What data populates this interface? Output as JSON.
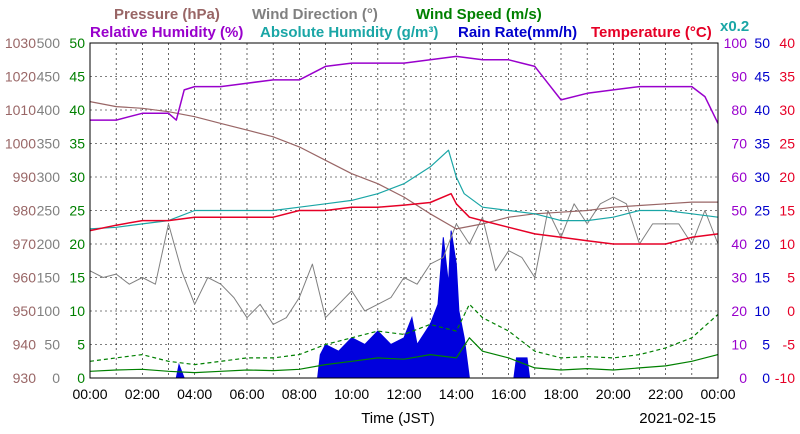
{
  "chart_data": {
    "type": "line",
    "date": "2021-02-15",
    "xlabel": "Time (JST)",
    "x_ticks": [
      "00:00",
      "02:00",
      "04:00",
      "06:00",
      "08:00",
      "10:00",
      "12:00",
      "14:00",
      "16:00",
      "18:00",
      "20:00",
      "22:00",
      "00:00"
    ],
    "legend": {
      "row1": [
        {
          "id": "pressure",
          "text": "Pressure (hPa)",
          "color": "#996666"
        },
        {
          "id": "wind_dir",
          "text": "Wind Direction (°)",
          "color": "#808080"
        },
        {
          "id": "wind_speed",
          "text": "Wind Speed (m/s)",
          "color": "#008000"
        }
      ],
      "row2": [
        {
          "id": "rh",
          "text": "Relative Humidity (%)",
          "color": "#9900cc"
        },
        {
          "id": "ah",
          "text": "Absolute Humidity (g/m³)",
          "color": "#1aa6a6"
        },
        {
          "id": "rain",
          "text": "Rain Rate(mm/h)",
          "color": "#0000cc"
        },
        {
          "id": "temp",
          "text": "Temperature (°C)",
          "color": "#e60026"
        },
        {
          "id": "scale",
          "text": "x0.2",
          "color": "#1aa6a6"
        }
      ]
    },
    "axes": {
      "pressure": {
        "color": "#996666",
        "ylim": [
          930,
          1030
        ],
        "ticks": [
          1030,
          1020,
          1010,
          1000,
          990,
          980,
          970,
          960,
          950,
          940,
          930
        ]
      },
      "wind_dir": {
        "color": "#808080",
        "ylim": [
          0,
          500
        ],
        "ticks": [
          500,
          450,
          400,
          350,
          300,
          250,
          200,
          150,
          100,
          50,
          0
        ]
      },
      "wind_speed": {
        "color": "#008000",
        "ylim": [
          0,
          50
        ],
        "ticks": [
          50,
          45,
          40,
          35,
          30,
          25,
          20,
          15,
          10,
          5,
          0
        ]
      },
      "humidity": {
        "color": "#9900cc",
        "ylim": [
          0,
          100
        ],
        "ticks": [
          100,
          90,
          80,
          70,
          60,
          50,
          40,
          30,
          20,
          10,
          0
        ]
      },
      "rain": {
        "color": "#0000cc",
        "ylim": [
          0,
          50
        ],
        "ticks": [
          50,
          45,
          40,
          35,
          30,
          25,
          20,
          15,
          10,
          5,
          0
        ]
      },
      "temp": {
        "color": "#e60026",
        "ylim": [
          -10,
          40
        ],
        "ticks": [
          40,
          35,
          30,
          25,
          20,
          15,
          10,
          5,
          0,
          -5,
          -10
        ]
      }
    },
    "series": {
      "pressure": {
        "name": "Pressure (hPa)",
        "x_hours": [
          0,
          1,
          2,
          3,
          4,
          5,
          6,
          7,
          8,
          9,
          10,
          11,
          12,
          13,
          14,
          15,
          16,
          17,
          18,
          19,
          20,
          21,
          22,
          23,
          24
        ],
        "values": [
          1012.5,
          1011,
          1010.5,
          1009.5,
          1008,
          1006,
          1004,
          1002,
          999,
          995,
          991,
          988,
          984,
          979,
          974.5,
          976,
          978,
          979,
          979.5,
          980,
          981,
          981.5,
          982,
          982.5,
          982.5
        ]
      },
      "wind_dir": {
        "name": "Wind Direction",
        "x_hours": [
          0,
          0.5,
          1,
          1.5,
          2,
          2.5,
          3,
          3.5,
          4,
          4.5,
          5,
          5.5,
          6,
          6.5,
          7,
          7.5,
          8,
          8.5,
          9,
          9.5,
          10,
          10.5,
          11,
          11.5,
          12,
          12.5,
          13,
          13.5,
          14,
          14.5,
          15,
          15.5,
          16,
          16.5,
          17,
          17.5,
          18,
          18.5,
          19,
          19.5,
          20,
          20.5,
          21,
          21.5,
          22,
          22.5,
          23,
          23.5,
          24
        ],
        "values": [
          160,
          150,
          155,
          140,
          150,
          140,
          230,
          160,
          110,
          150,
          140,
          120,
          90,
          110,
          80,
          90,
          120,
          170,
          90,
          110,
          130,
          100,
          110,
          120,
          150,
          140,
          170,
          180,
          230,
          200,
          240,
          160,
          190,
          180,
          150,
          250,
          210,
          260,
          230,
          260,
          270,
          260,
          200,
          230,
          230,
          230,
          200,
          250,
          200
        ]
      },
      "wind_speed": {
        "name": "Wind Speed (m/s)",
        "x_hours": [
          0,
          1,
          2,
          3,
          4,
          5,
          6,
          7,
          8,
          9,
          10,
          11,
          12,
          13,
          14,
          14.5,
          15,
          16,
          17,
          18,
          19,
          20,
          21,
          22,
          23,
          24
        ],
        "values": [
          1,
          1.2,
          1.3,
          1,
          0.8,
          1,
          1.2,
          1.1,
          1.3,
          2,
          2.5,
          3,
          2.8,
          3.5,
          3,
          6,
          4,
          3,
          1.5,
          1.2,
          1.4,
          1.2,
          1.5,
          1.8,
          2.5,
          3.5
        ]
      },
      "wind_gust": {
        "name": "Wind Gust",
        "x_hours": [
          0,
          1,
          2,
          3,
          4,
          5,
          6,
          7,
          8,
          9,
          10,
          11,
          12,
          13,
          14,
          14.5,
          15,
          16,
          17,
          18,
          19,
          20,
          21,
          22,
          23,
          24
        ],
        "values": [
          2.5,
          3,
          3.5,
          2.5,
          2,
          2.5,
          3,
          3,
          3.5,
          5,
          6,
          7,
          6.5,
          8,
          7,
          11,
          9,
          7,
          4,
          3,
          3.2,
          3,
          3.5,
          4.5,
          6,
          9.5
        ]
      },
      "rh": {
        "name": "Relative Humidity (%)",
        "x_hours": [
          0,
          1,
          2,
          3,
          3.3,
          3.6,
          4,
          5,
          6,
          7,
          8,
          9,
          10,
          11,
          12,
          13,
          14,
          15,
          16,
          16.5,
          17,
          17.5,
          18,
          19,
          20,
          21,
          22,
          23,
          23.5,
          24
        ],
        "values": [
          77,
          77,
          79,
          79,
          77,
          86,
          87,
          87,
          88,
          89,
          89,
          93,
          94,
          94,
          94,
          95,
          96,
          95,
          95,
          94,
          93,
          88,
          83,
          85,
          86,
          87,
          87,
          87,
          84,
          76
        ]
      },
      "ah": {
        "name": "Absolute Humidity (g/m³)",
        "x_hours": [
          0,
          1,
          2,
          3,
          4,
          5,
          6,
          7,
          8,
          9,
          10,
          11,
          12,
          13,
          13.7,
          14,
          14.3,
          15,
          16,
          17,
          18,
          19,
          20,
          21,
          22,
          23,
          24
        ],
        "values": [
          44.5,
          45,
          46,
          47,
          50,
          50,
          50,
          50,
          51,
          52,
          53,
          55,
          58,
          63,
          68,
          60,
          55,
          51,
          50,
          49,
          47,
          47,
          48,
          50,
          50,
          49,
          48
        ]
      },
      "temp": {
        "name": "Temperature (°C)",
        "x_hours": [
          0,
          1,
          2,
          3,
          4,
          5,
          6,
          7,
          8,
          9,
          10,
          11,
          12,
          13,
          13.8,
          14,
          14.5,
          15,
          16,
          17,
          18,
          19,
          20,
          21,
          22,
          23,
          24
        ],
        "values": [
          12,
          12.8,
          13.5,
          13.5,
          14,
          14,
          14,
          14,
          15,
          15,
          15.5,
          15.5,
          15.8,
          16.2,
          17.5,
          16,
          14,
          13.5,
          12.5,
          11.5,
          11,
          10.5,
          10,
          10,
          10,
          11,
          11.5
        ]
      },
      "rain": {
        "name": "Rain Rate(mm/h)",
        "x_hours": [
          0,
          3.3,
          3.4,
          3.5,
          3.6,
          8.7,
          8.8,
          9,
          9.5,
          10,
          10.5,
          11,
          11.5,
          12,
          12.3,
          12.5,
          13,
          13.3,
          13.5,
          13.7,
          13.8,
          14,
          14.1,
          14.3,
          14.5,
          16.2,
          16.3,
          16.7,
          16.8,
          24
        ],
        "values": [
          0,
          0,
          2,
          1,
          0,
          0,
          3.5,
          5,
          4,
          6,
          5,
          7,
          5,
          6,
          9,
          5,
          8,
          11,
          21,
          14,
          22,
          17,
          10,
          6,
          0,
          0,
          3,
          3,
          0,
          0
        ]
      }
    }
  }
}
